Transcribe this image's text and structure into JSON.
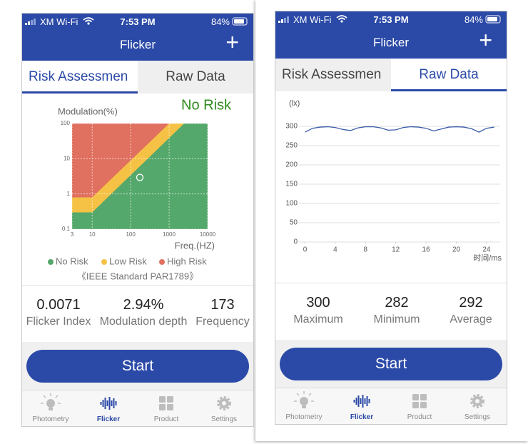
{
  "screens": [
    {
      "status_bar": {
        "carrier": "XM Wi-Fi",
        "time": "7:53 PM",
        "battery": "84%"
      },
      "header": {
        "title": "Flicker",
        "action": "+"
      },
      "tabs": [
        "Risk Assessmen",
        "Raw Data"
      ],
      "active_tab": 0,
      "chart_data": {
        "type": "risk-map",
        "y_label": "Modulation(%)",
        "x_label": "Freq.(HZ)",
        "result": "No Risk",
        "result_color": "#2e8b1e",
        "log_scale": true,
        "grid": true,
        "xlim": [
          3,
          10000
        ],
        "ylim": [
          0.1,
          100
        ],
        "xticks": [
          3,
          10,
          100,
          1000,
          10000
        ],
        "yticks": [
          0.1,
          1,
          10,
          100
        ],
        "series": [
          {
            "name": "No Risk",
            "color": "#55a86b",
            "x": [
              3,
              10,
              2450
            ],
            "y": [
              0.3,
              0.3,
              100
            ]
          },
          {
            "name": "Low Risk",
            "color": "#f5c245",
            "x": [
              3,
              10,
              1000
            ],
            "y": [
              0.8,
              0.8,
              100
            ]
          },
          {
            "name": "High Risk",
            "color": "#e0705f"
          }
        ],
        "point": {
          "x": 173,
          "y": 2.94,
          "color": "#ffffff"
        },
        "note": "《IEEE Standard PAR1789》"
      },
      "stats": [
        {
          "value": "0.0071",
          "label": "Flicker Index"
        },
        {
          "value": "2.94%",
          "label": "Modulation depth"
        },
        {
          "value": "173",
          "label": "Frequency"
        }
      ],
      "button": "Start",
      "tab_bar": [
        "Photometry",
        "Flicker",
        "Product",
        "Settings"
      ],
      "active_nav": 1
    },
    {
      "status_bar": {
        "carrier": "XM Wi-Fi",
        "time": "7:53 PM",
        "battery": "84%"
      },
      "header": {
        "title": "Flicker",
        "action": "+"
      },
      "tabs": [
        "Risk Assessmen",
        "Raw Data"
      ],
      "active_tab": 1,
      "chart_data": {
        "type": "line",
        "y_label": "(lx)",
        "x_label": "时间/ms",
        "grid": true,
        "xlim": [
          -0.8,
          25.8
        ],
        "ylim": [
          0,
          300
        ],
        "xticks": [
          0,
          4,
          8,
          12,
          16,
          20,
          24
        ],
        "yticks": [
          0,
          50,
          100,
          150,
          200,
          250,
          300
        ],
        "series": [
          {
            "name": "lx",
            "color": "#3a5ca8",
            "x": [
              0,
              1,
              2,
              3,
              4,
              5,
              6,
              7,
              8,
              9,
              10,
              11,
              12,
              13,
              14,
              15,
              16,
              17,
              18,
              19,
              20,
              21,
              22,
              23,
              24,
              25
            ],
            "values": [
              285,
              295,
              298,
              299,
              297,
              292,
              289,
              296,
              299,
              299,
              296,
              290,
              291,
              297,
              299,
              298,
              295,
              288,
              293,
              298,
              299,
              298,
              294,
              285,
              295,
              298
            ]
          }
        ]
      },
      "stats": [
        {
          "value": "300",
          "label": "Maximum"
        },
        {
          "value": "282",
          "label": "Minimum"
        },
        {
          "value": "292",
          "label": "Average"
        }
      ],
      "button": "Start",
      "tab_bar": [
        "Photometry",
        "Flicker",
        "Product",
        "Settings"
      ],
      "active_nav": 1
    }
  ]
}
